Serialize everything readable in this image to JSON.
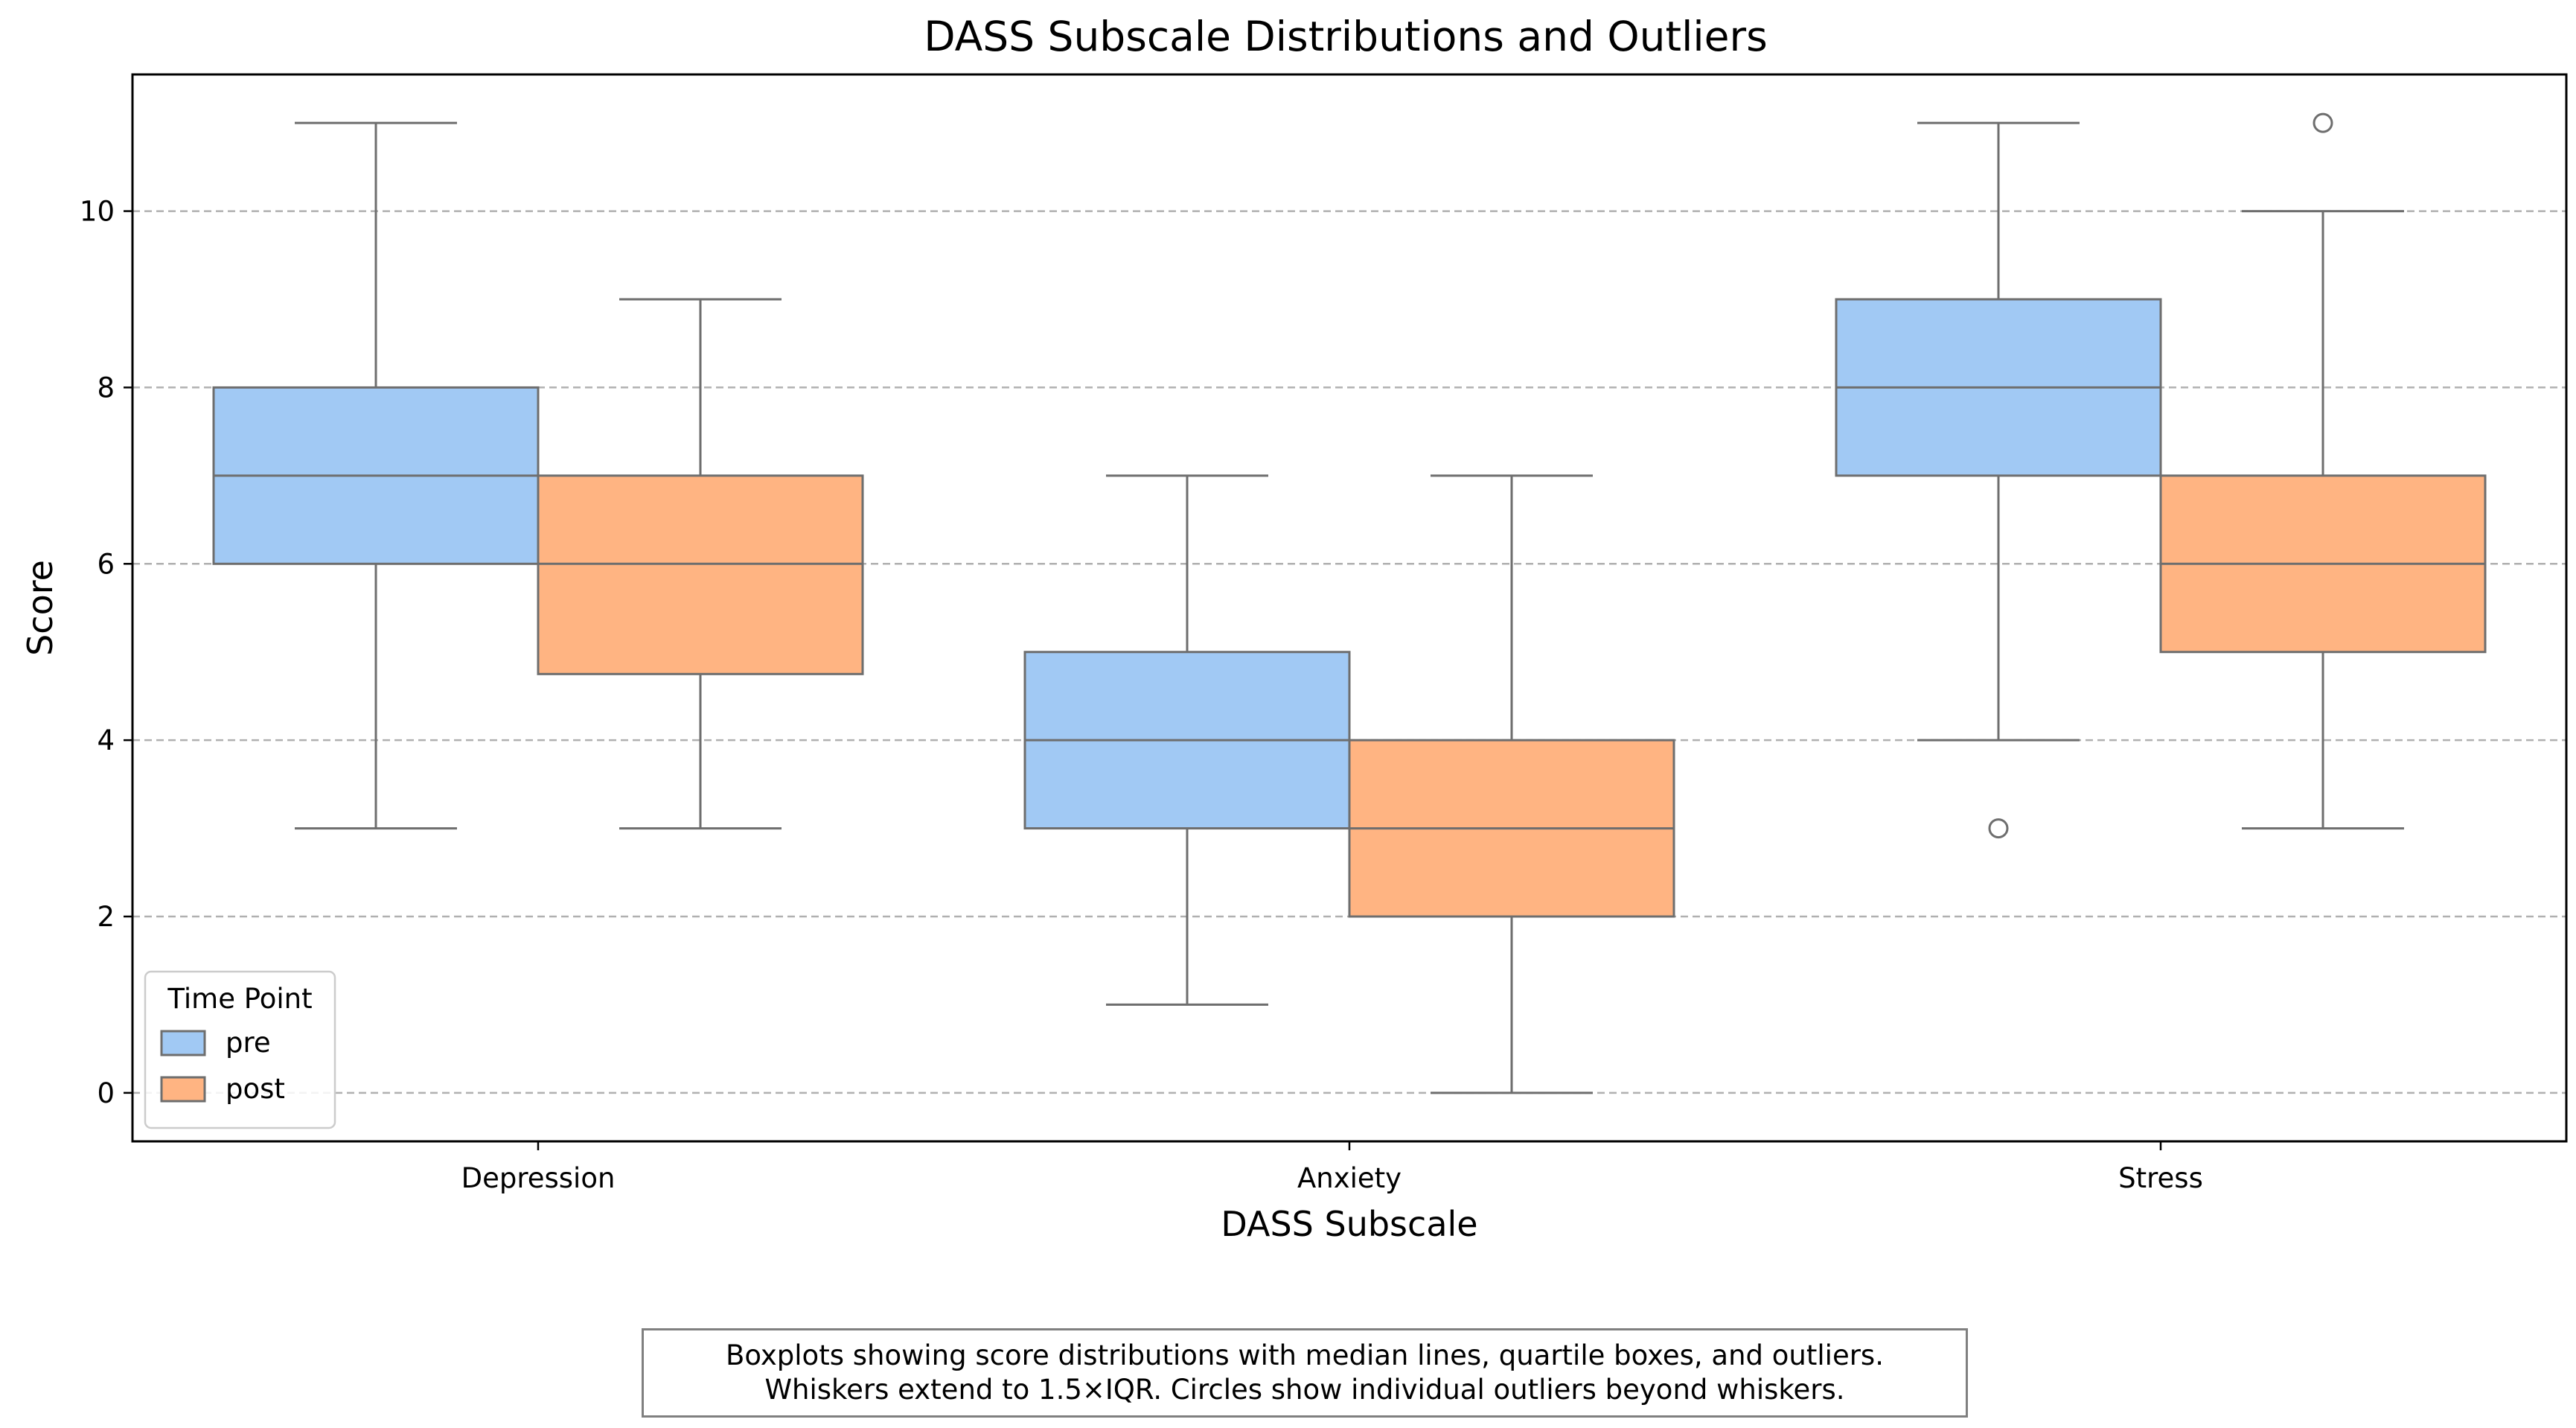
{
  "chart_data": {
    "type": "boxplot",
    "title": "DASS Subscale Distributions and Outliers",
    "xlabel": "DASS Subscale",
    "ylabel": "Score",
    "categories": [
      "Depression",
      "Anxiety",
      "Stress"
    ],
    "ylim": [
      -0.55,
      11.55
    ],
    "yticks": [
      0,
      2,
      4,
      6,
      8,
      10
    ],
    "grid": "horizontal dashed",
    "legend": {
      "title": "Time Point",
      "placement": "lower-left"
    },
    "series": [
      {
        "name": "pre",
        "color": "#a1c9f4",
        "boxes": [
          {
            "category": "Depression",
            "whisker_low": 3,
            "q1": 6,
            "median": 7,
            "q3": 8,
            "whisker_high": 11,
            "outliers": []
          },
          {
            "category": "Anxiety",
            "whisker_low": 1,
            "q1": 3,
            "median": 4,
            "q3": 5,
            "whisker_high": 7,
            "outliers": []
          },
          {
            "category": "Stress",
            "whisker_low": 4,
            "q1": 7,
            "median": 8,
            "q3": 9,
            "whisker_high": 11,
            "outliers": [
              3
            ]
          }
        ]
      },
      {
        "name": "post",
        "color": "#ffb482",
        "boxes": [
          {
            "category": "Depression",
            "whisker_low": 3,
            "q1": 4.75,
            "median": 6,
            "q3": 7,
            "whisker_high": 9,
            "outliers": []
          },
          {
            "category": "Anxiety",
            "whisker_low": 0,
            "q1": 2,
            "median": 3,
            "q3": 4,
            "whisker_high": 7,
            "outliers": []
          },
          {
            "category": "Stress",
            "whisker_low": 3,
            "q1": 5,
            "median": 6,
            "q3": 7,
            "whisker_high": 10,
            "outliers": [
              11
            ]
          }
        ]
      }
    ]
  },
  "caption": {
    "line1": "Boxplots showing score distributions with median lines, quartile boxes, and outliers.",
    "line2": "Whiskers extend to 1.5×IQR. Circles show individual outliers beyond whiskers."
  }
}
